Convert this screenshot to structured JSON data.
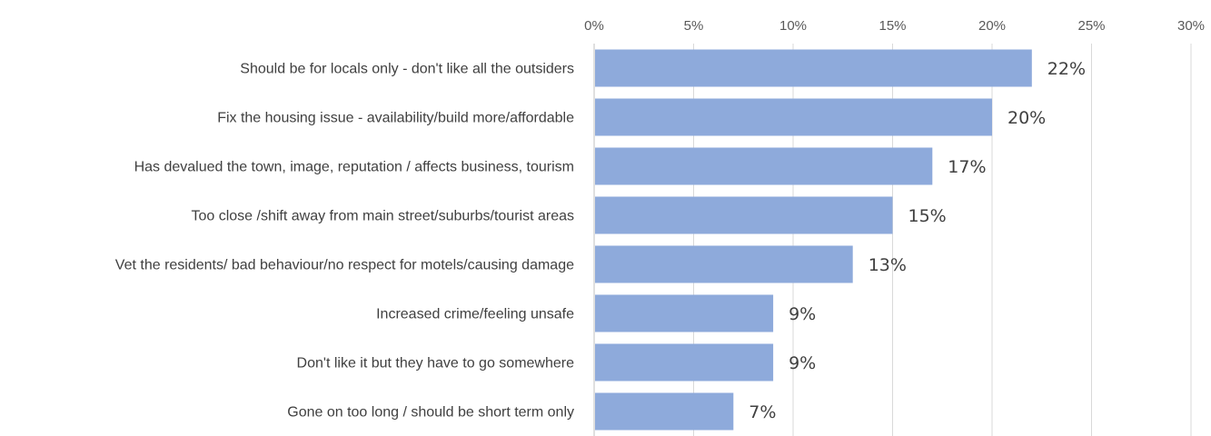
{
  "chart_data": {
    "type": "bar",
    "orientation": "horizontal",
    "title": "",
    "xlabel": "",
    "ylabel": "",
    "xlim": [
      0,
      30
    ],
    "x_ticks": [
      "0%",
      "5%",
      "10%",
      "15%",
      "20%",
      "25%",
      "30%"
    ],
    "x_tick_values": [
      0,
      5,
      10,
      15,
      20,
      25,
      30
    ],
    "x_axis_position": "top",
    "grid": true,
    "legend": "none",
    "bar_color": "#8eaadb",
    "categories": [
      "Should be for locals only  - don't like all the outsiders",
      "Fix the housing issue - availability/build more/affordable",
      "Has devalued the town, image, reputation / affects business, tourism",
      "Too close /shift away from main street/suburbs/tourist areas",
      "Vet the residents/ bad behaviour/no respect for motels/causing damage",
      "Increased crime/feeling unsafe",
      "Don't like it but they have to go somewhere",
      "Gone on too long / should be short term only"
    ],
    "values": [
      22,
      20,
      17,
      15,
      13,
      9,
      9,
      7
    ],
    "data_labels": [
      "22%",
      "20%",
      "17%",
      "15%",
      "13%",
      "9%",
      "9%",
      "7%"
    ]
  }
}
